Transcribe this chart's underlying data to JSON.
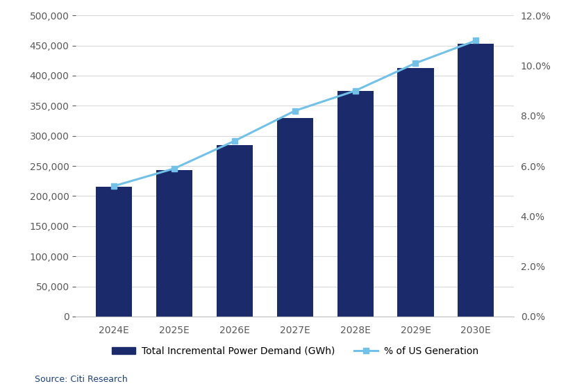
{
  "categories": [
    "2024E",
    "2025E",
    "2026E",
    "2027E",
    "2028E",
    "2029E",
    "2030E"
  ],
  "bar_values": [
    215000,
    243000,
    285000,
    330000,
    375000,
    413000,
    453000
  ],
  "line_values": [
    0.052,
    0.059,
    0.07,
    0.082,
    0.09,
    0.101,
    0.11
  ],
  "bar_color": "#1B2A6B",
  "line_color": "#72C1E8",
  "line_marker": "s",
  "line_marker_color": "#72C1E8",
  "line_marker_edge_color": "#72C1E8",
  "bar_ylim": [
    0,
    500000
  ],
  "bar_yticks": [
    0,
    50000,
    100000,
    150000,
    200000,
    250000,
    300000,
    350000,
    400000,
    450000,
    500000
  ],
  "line_ylim": [
    0.0,
    0.12
  ],
  "line_yticks": [
    0.0,
    0.02,
    0.04,
    0.06,
    0.08,
    0.1,
    0.12
  ],
  "legend_bar_label": "Total Incremental Power Demand (GWh)",
  "legend_line_label": "% of US Generation",
  "source_text": "Source: Citi Research",
  "background_color": "#FFFFFF",
  "grid_color": "#D9D9D9",
  "tick_label_color": "#595959",
  "bar_width": 0.6,
  "spine_color": "#BFBFBF",
  "source_color": "#1B4080",
  "tick_fontsize": 10,
  "legend_fontsize": 10
}
